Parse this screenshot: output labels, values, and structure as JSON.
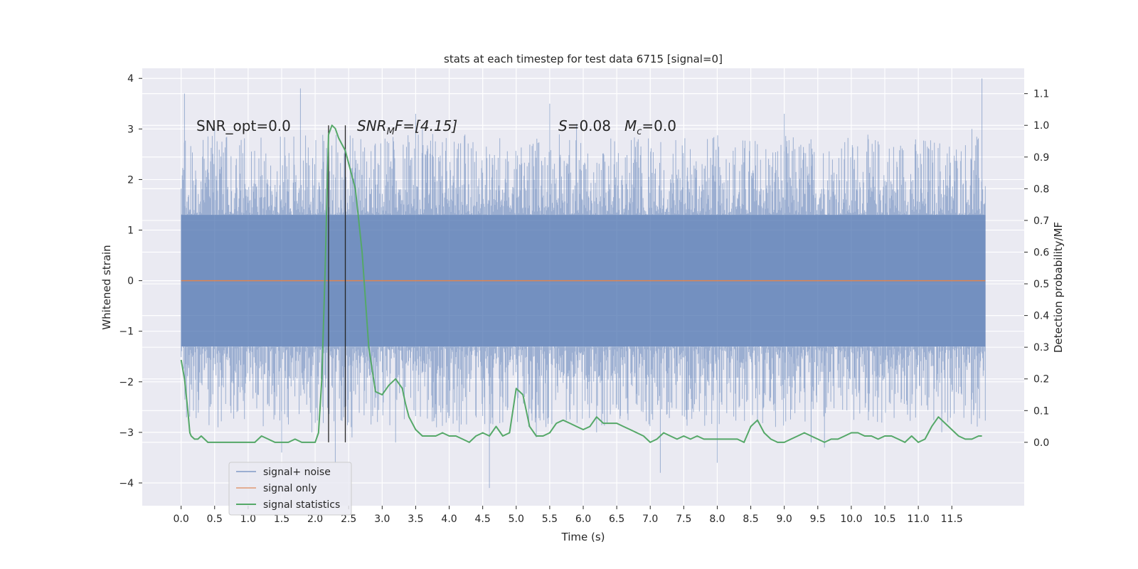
{
  "chart_data": {
    "type": "line",
    "title": "stats at each timestep for test data 6715 [signal=0]",
    "xlabel": "Time (s)",
    "ylabel": "Whitened strain",
    "ylabel_right": "Detection probability/MF",
    "xlim": [
      -0.58,
      12.58
    ],
    "ylim": [
      -4.45,
      4.2
    ],
    "ylim_right": [
      -0.2,
      1.18
    ],
    "x_ticks": [
      "0.0",
      "0.5",
      "1.0",
      "1.5",
      "2.0",
      "2.5",
      "3.0",
      "3.5",
      "4.0",
      "4.5",
      "5.0",
      "5.5",
      "6.0",
      "6.5",
      "7.0",
      "7.5",
      "8.0",
      "8.5",
      "9.0",
      "9.5",
      "10.0",
      "10.5",
      "11.0",
      "11.5"
    ],
    "y_ticks": [
      "4",
      "3",
      "2",
      "1",
      "0",
      "−1",
      "−2",
      "−3",
      "−4"
    ],
    "y_ticks_right": [
      "1.1",
      "1.0",
      "0.9",
      "0.8",
      "0.7",
      "0.6",
      "0.5",
      "0.4",
      "0.3",
      "0.2",
      "0.1",
      "0.0"
    ],
    "grid": true,
    "annotations": {
      "snr_opt": "SNR_opt=0.0",
      "snr_mf_main": "SNR",
      "snr_mf_sub": "M",
      "snr_mf_rest": "F=[4.15]",
      "s_label": "S",
      "s_value": "=0.08",
      "mc_label": "M",
      "mc_sub": "c",
      "mc_value": "=0.0"
    },
    "vlines": [
      2.2,
      2.45
    ],
    "series": [
      {
        "name": "signal+ noise",
        "color": "#4c72b0",
        "opacity": 0.5,
        "axis": "left",
        "x_range": [
          0.0,
          12.0
        ],
        "envelope_core": [
          -1.3,
          1.3
        ],
        "peaks": [
          [
            0.05,
            3.7
          ],
          [
            0.08,
            -2.7
          ],
          [
            0.5,
            3.0
          ],
          [
            0.55,
            -2.9
          ],
          [
            1.5,
            -3.4
          ],
          [
            1.78,
            3.8
          ],
          [
            1.95,
            -3.0
          ],
          [
            2.3,
            -3.6
          ],
          [
            2.55,
            -3.1
          ],
          [
            3.2,
            -3.2
          ],
          [
            3.5,
            3.3
          ],
          [
            3.6,
            3.0
          ],
          [
            4.15,
            -3.0
          ],
          [
            4.6,
            -4.1
          ],
          [
            4.8,
            -2.8
          ],
          [
            5.3,
            -3.1
          ],
          [
            5.5,
            3.5
          ],
          [
            5.9,
            3.1
          ],
          [
            6.2,
            -3.0
          ],
          [
            7.15,
            -3.8
          ],
          [
            8.0,
            -3.6
          ],
          [
            8.6,
            -2.8
          ],
          [
            9.0,
            3.3
          ],
          [
            9.4,
            -3.2
          ],
          [
            9.6,
            -3.3
          ],
          [
            11.35,
            -3.0
          ],
          [
            11.8,
            3.0
          ],
          [
            11.95,
            4.0
          ]
        ]
      },
      {
        "name": "signal only",
        "color": "#dd8452",
        "axis": "left",
        "x": [
          0.0,
          12.0
        ],
        "y": [
          0.0,
          0.0
        ]
      },
      {
        "name": "signal statistics",
        "color": "#55a868",
        "axis": "right",
        "x": [
          0.0,
          0.05,
          0.1,
          0.13,
          0.15,
          0.2,
          0.25,
          0.3,
          0.4,
          0.5,
          0.6,
          0.7,
          0.8,
          0.9,
          1.0,
          1.1,
          1.2,
          1.3,
          1.4,
          1.5,
          1.6,
          1.7,
          1.8,
          1.9,
          2.0,
          2.05,
          2.1,
          2.15,
          2.2,
          2.25,
          2.3,
          2.35,
          2.4,
          2.45,
          2.5,
          2.6,
          2.7,
          2.8,
          2.9,
          3.0,
          3.1,
          3.2,
          3.3,
          3.35,
          3.4,
          3.5,
          3.6,
          3.7,
          3.8,
          3.9,
          4.0,
          4.1,
          4.2,
          4.3,
          4.4,
          4.5,
          4.6,
          4.7,
          4.8,
          4.9,
          5.0,
          5.1,
          5.2,
          5.3,
          5.4,
          5.5,
          5.6,
          5.7,
          5.8,
          5.9,
          6.0,
          6.1,
          6.2,
          6.3,
          6.4,
          6.5,
          6.6,
          6.7,
          6.8,
          6.9,
          7.0,
          7.1,
          7.2,
          7.3,
          7.4,
          7.5,
          7.6,
          7.7,
          7.8,
          7.9,
          8.0,
          8.1,
          8.2,
          8.3,
          8.4,
          8.5,
          8.6,
          8.7,
          8.8,
          8.9,
          9.0,
          9.1,
          9.2,
          9.3,
          9.4,
          9.5,
          9.6,
          9.7,
          9.8,
          9.9,
          10.0,
          10.1,
          10.2,
          10.3,
          10.4,
          10.5,
          10.6,
          10.7,
          10.8,
          10.9,
          11.0,
          11.1,
          11.2,
          11.3,
          11.4,
          11.5,
          11.6,
          11.7,
          11.8,
          11.9,
          11.95
        ],
        "y": [
          0.26,
          0.2,
          0.1,
          0.03,
          0.02,
          0.01,
          0.01,
          0.02,
          0.0,
          0.0,
          0.0,
          0.0,
          0.0,
          0.0,
          0.0,
          0.0,
          0.02,
          0.01,
          0.0,
          0.0,
          0.0,
          0.01,
          0.0,
          0.0,
          0.0,
          0.03,
          0.2,
          0.55,
          0.97,
          1.0,
          0.99,
          0.96,
          0.94,
          0.92,
          0.88,
          0.8,
          0.6,
          0.3,
          0.16,
          0.15,
          0.18,
          0.2,
          0.17,
          0.12,
          0.08,
          0.04,
          0.02,
          0.02,
          0.02,
          0.03,
          0.02,
          0.02,
          0.01,
          0.0,
          0.02,
          0.03,
          0.02,
          0.05,
          0.02,
          0.03,
          0.17,
          0.15,
          0.05,
          0.02,
          0.02,
          0.03,
          0.06,
          0.07,
          0.06,
          0.05,
          0.04,
          0.05,
          0.08,
          0.06,
          0.06,
          0.06,
          0.05,
          0.04,
          0.03,
          0.02,
          0.0,
          0.01,
          0.03,
          0.02,
          0.01,
          0.02,
          0.01,
          0.02,
          0.01,
          0.01,
          0.01,
          0.01,
          0.01,
          0.01,
          0.0,
          0.05,
          0.07,
          0.03,
          0.01,
          0.0,
          0.0,
          0.01,
          0.02,
          0.03,
          0.02,
          0.01,
          0.0,
          0.01,
          0.01,
          0.02,
          0.03,
          0.03,
          0.02,
          0.02,
          0.01,
          0.02,
          0.02,
          0.01,
          0.0,
          0.02,
          0.0,
          0.01,
          0.05,
          0.08,
          0.06,
          0.04,
          0.02,
          0.01,
          0.01,
          0.02,
          0.02
        ]
      }
    ],
    "legend": {
      "position": "lower-left",
      "entries": [
        {
          "label": "signal+ noise",
          "color": "#4c72b0",
          "opacity": 0.5
        },
        {
          "label": "signal only",
          "color": "#dd8452",
          "opacity": 0.6
        },
        {
          "label": "signal statistics",
          "color": "#55a868",
          "opacity": 1
        }
      ]
    }
  }
}
